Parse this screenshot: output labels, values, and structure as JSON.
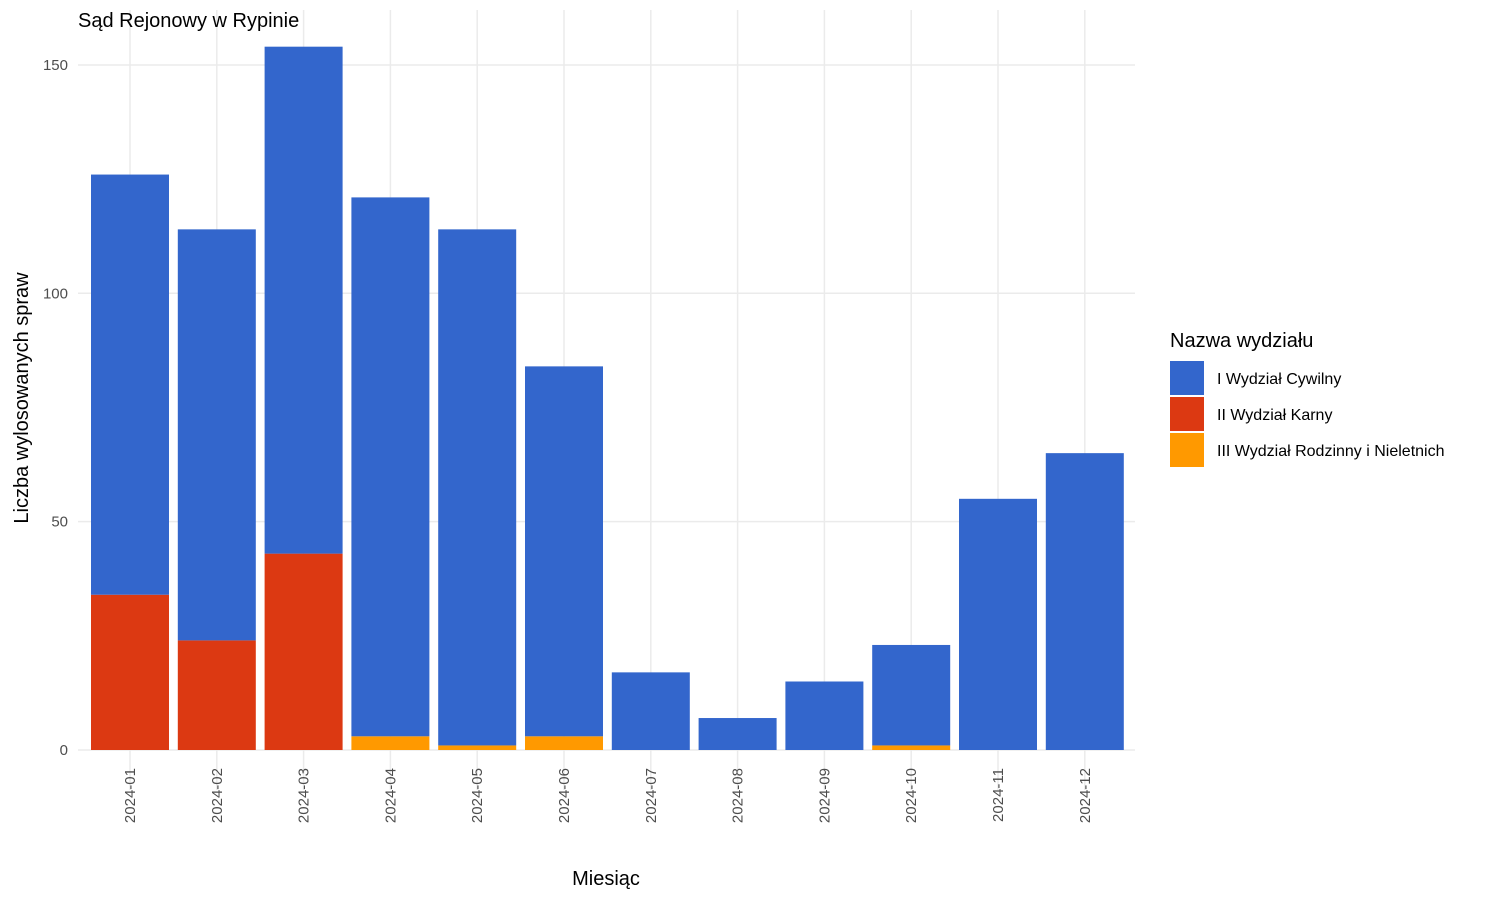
{
  "chart_data": {
    "type": "bar",
    "stacked": true,
    "title": "Sąd Rejonowy w Rypinie",
    "xlabel": "Miesiąc",
    "ylabel": "Liczba wylosowanych spraw",
    "ylim": [
      0,
      160
    ],
    "yticks": [
      0,
      50,
      100,
      150
    ],
    "grid": true,
    "legend_placement": "right",
    "legend_title": "Nazwa wydziału",
    "categories": [
      "2024-01",
      "2024-02",
      "2024-03",
      "2024-04",
      "2024-05",
      "2024-06",
      "2024-07",
      "2024-08",
      "2024-09",
      "2024-10",
      "2024-11",
      "2024-12"
    ],
    "series": [
      {
        "name": "I Wydział Cywilny",
        "color": "#3366cc",
        "values": [
          92,
          90,
          111,
          118,
          113,
          81,
          17,
          7,
          15,
          22,
          55,
          65
        ]
      },
      {
        "name": "II Wydział Karny",
        "color": "#dc3912",
        "values": [
          34,
          24,
          43,
          0,
          0,
          0,
          0,
          0,
          0,
          0,
          0,
          0
        ]
      },
      {
        "name": "III Wydział Rodzinny i Nieletnich",
        "color": "#ff9900",
        "values": [
          0,
          0,
          0,
          3,
          1,
          3,
          0,
          0,
          0,
          1,
          0,
          0
        ]
      }
    ],
    "stack_order_bottom_to_top": [
      "III Wydział Rodzinny i Nieletnich",
      "II Wydział Karny",
      "I Wydział Cywilny"
    ]
  }
}
